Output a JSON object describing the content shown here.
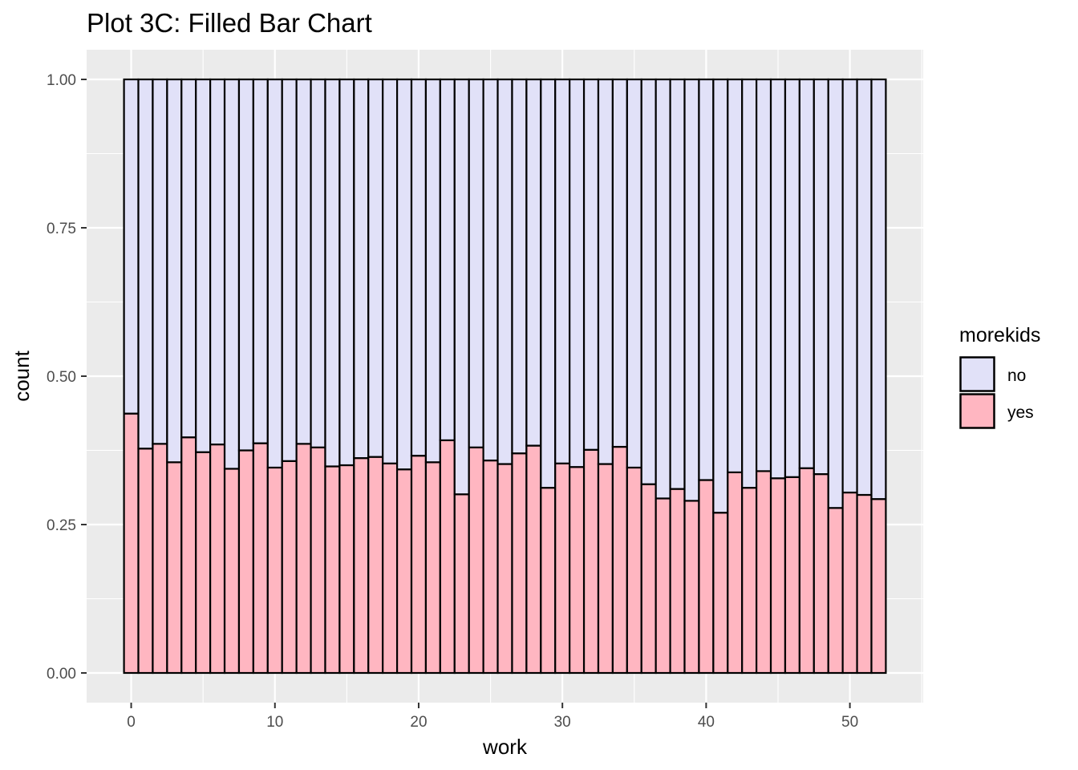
{
  "chart_data": {
    "type": "bar",
    "stacked": true,
    "position": "fill",
    "title": "Plot 3C: Filled Bar Chart",
    "xlabel": "work",
    "ylabel": "count",
    "x": [
      0,
      1,
      2,
      3,
      4,
      5,
      6,
      7,
      8,
      9,
      10,
      11,
      12,
      13,
      14,
      15,
      16,
      17,
      18,
      19,
      20,
      21,
      22,
      23,
      24,
      25,
      26,
      27,
      28,
      29,
      30,
      31,
      32,
      33,
      34,
      35,
      36,
      37,
      38,
      39,
      40,
      41,
      42,
      43,
      44,
      45,
      46,
      47,
      48,
      49,
      50,
      51,
      52
    ],
    "series": [
      {
        "name": "yes",
        "values": [
          0.437,
          0.378,
          0.386,
          0.355,
          0.397,
          0.372,
          0.385,
          0.344,
          0.375,
          0.387,
          0.346,
          0.357,
          0.386,
          0.38,
          0.348,
          0.35,
          0.362,
          0.364,
          0.353,
          0.343,
          0.366,
          0.355,
          0.392,
          0.301,
          0.38,
          0.358,
          0.352,
          0.37,
          0.383,
          0.312,
          0.353,
          0.347,
          0.376,
          0.352,
          0.381,
          0.346,
          0.318,
          0.294,
          0.31,
          0.29,
          0.325,
          0.27,
          0.338,
          0.312,
          0.34,
          0.328,
          0.33,
          0.345,
          0.335,
          0.278,
          0.304,
          0.3,
          0.293
        ]
      },
      {
        "name": "no",
        "values": [
          0.563,
          0.622,
          0.614,
          0.645,
          0.603,
          0.628,
          0.615,
          0.656,
          0.625,
          0.613,
          0.654,
          0.643,
          0.614,
          0.62,
          0.652,
          0.65,
          0.638,
          0.636,
          0.647,
          0.657,
          0.634,
          0.645,
          0.608,
          0.699,
          0.62,
          0.642,
          0.648,
          0.63,
          0.617,
          0.688,
          0.647,
          0.653,
          0.624,
          0.648,
          0.619,
          0.654,
          0.682,
          0.706,
          0.69,
          0.71,
          0.675,
          0.73,
          0.662,
          0.688,
          0.66,
          0.672,
          0.67,
          0.655,
          0.665,
          0.722,
          0.696,
          0.7,
          0.707
        ]
      }
    ],
    "xlim": [
      -3.1,
      55.1
    ],
    "ylim": [
      -0.05,
      1.05
    ],
    "x_ticks": [
      "0",
      "10",
      "20",
      "30",
      "40",
      "50"
    ],
    "y_ticks": [
      "0.00",
      "0.25",
      "0.50",
      "0.75",
      "1.00"
    ],
    "grid": true,
    "legend": {
      "title": "morekids",
      "position": "right",
      "entries": [
        {
          "label": "no",
          "color": "#E1E1F8"
        },
        {
          "label": "yes",
          "color": "#FFB6C1"
        }
      ]
    },
    "colors": {
      "panel": "#EBEBEB",
      "grid": "#FFFFFF",
      "bar_outline": "#000000",
      "tick_text": "#4D4D4D"
    }
  }
}
